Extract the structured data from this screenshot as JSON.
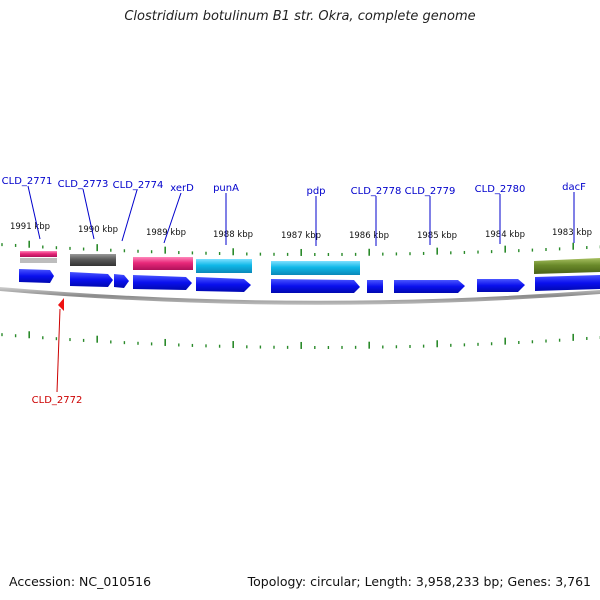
{
  "title": "Clostridium botulinum B1 str. Okra, complete genome",
  "footer": {
    "accession": "Accession: NC_010516",
    "summary": "Topology: circular; Length: 3,958,233 bp; Genes: 3,761"
  },
  "colors": {
    "cds": "#0a10ee",
    "gene_label": "#0000cc",
    "highlight_label": "#cc0000",
    "tick": "#2a8a2a",
    "backbone": "#8a8a8a",
    "magenta": "#e8287a",
    "gray": "#5a5a5a",
    "cyan": "#10b8e8",
    "olive": "#6a8a2a",
    "marker": "#ee1111"
  },
  "kbp_labels": [
    "1991 kbp",
    "1990 kbp",
    "1989 kbp",
    "1988 kbp",
    "1987 kbp",
    "1986 kbp",
    "1985 kbp",
    "1984 kbp",
    "1983 kbp"
  ],
  "gene_labels_top": [
    "CLD_2771",
    "CLD_2773",
    "CLD_2774",
    "xerD",
    "punA",
    "pdp",
    "CLD_2778",
    "CLD_2779",
    "CLD_2780",
    "dacF"
  ],
  "gene_label_bottom": "CLD_2772"
}
